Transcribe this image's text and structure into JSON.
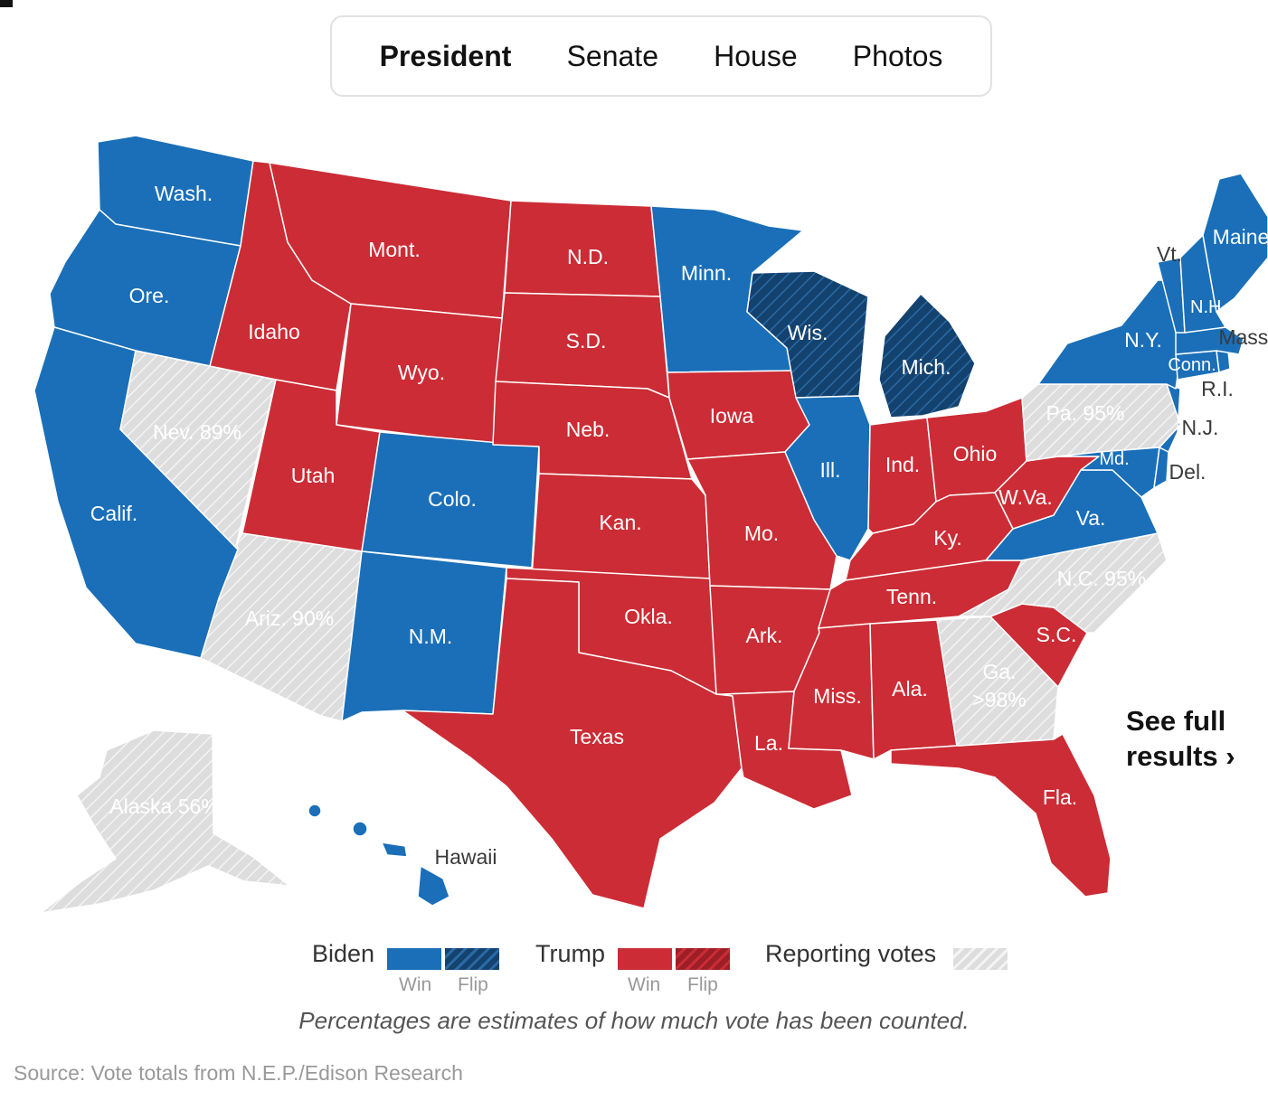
{
  "tabs": [
    {
      "label": "President",
      "active": true
    },
    {
      "label": "Senate",
      "active": false
    },
    {
      "label": "House",
      "active": false
    },
    {
      "label": "Photos",
      "active": false
    }
  ],
  "colors": {
    "biden": "#1a6fb8",
    "biden_flip": "#14426e",
    "trump": "#cc2c35",
    "trump_flip": "#9c1f27",
    "reporting": "#dddddd"
  },
  "map": {
    "states": {
      "wa": {
        "label": "Wash.",
        "status": "biden"
      },
      "or": {
        "label": "Ore.",
        "status": "biden"
      },
      "ca": {
        "label": "Calif.",
        "status": "biden"
      },
      "nv": {
        "label": "Nev. 89%",
        "status": "reporting",
        "reported_pct": 89
      },
      "id": {
        "label": "Idaho",
        "status": "trump"
      },
      "mt": {
        "label": "Mont.",
        "status": "trump"
      },
      "wy": {
        "label": "Wyo.",
        "status": "trump"
      },
      "ut": {
        "label": "Utah",
        "status": "trump"
      },
      "az": {
        "label": "Ariz. 90%",
        "status": "reporting",
        "reported_pct": 90
      },
      "co": {
        "label": "Colo.",
        "status": "biden"
      },
      "nm": {
        "label": "N.M.",
        "status": "biden"
      },
      "nd": {
        "label": "N.D.",
        "status": "trump"
      },
      "sd": {
        "label": "S.D.",
        "status": "trump"
      },
      "ne": {
        "label": "Neb.",
        "status": "trump"
      },
      "ks": {
        "label": "Kan.",
        "status": "trump"
      },
      "ok": {
        "label": "Okla.",
        "status": "trump"
      },
      "tx": {
        "label": "Texas",
        "status": "trump"
      },
      "mn": {
        "label": "Minn.",
        "status": "biden"
      },
      "ia": {
        "label": "Iowa",
        "status": "trump"
      },
      "mo": {
        "label": "Mo.",
        "status": "trump"
      },
      "ar": {
        "label": "Ark.",
        "status": "trump"
      },
      "la": {
        "label": "La.",
        "status": "trump"
      },
      "wi": {
        "label": "Wis.",
        "status": "biden_flip"
      },
      "il": {
        "label": "Ill.",
        "status": "biden"
      },
      "mi": {
        "label": "Mich.",
        "status": "biden_flip"
      },
      "in": {
        "label": "Ind.",
        "status": "trump"
      },
      "oh": {
        "label": "Ohio",
        "status": "trump"
      },
      "ky": {
        "label": "Ky.",
        "status": "trump"
      },
      "tn": {
        "label": "Tenn.",
        "status": "trump"
      },
      "ms": {
        "label": "Miss.",
        "status": "trump"
      },
      "al": {
        "label": "Ala.",
        "status": "trump"
      },
      "ga": {
        "label": "Ga.",
        "label2": ">98%",
        "status": "reporting",
        "reported_pct": 98
      },
      "fl": {
        "label": "Fla.",
        "status": "trump"
      },
      "sc": {
        "label": "S.C.",
        "status": "trump"
      },
      "nc": {
        "label": "N.C. 95%",
        "status": "reporting",
        "reported_pct": 95
      },
      "va": {
        "label": "Va.",
        "status": "biden"
      },
      "wv": {
        "label": "W.Va.",
        "status": "trump"
      },
      "pa": {
        "label": "Pa. 95%",
        "status": "reporting",
        "reported_pct": 95
      },
      "md": {
        "label": "Md.",
        "status": "biden"
      },
      "de": {
        "label": "Del.",
        "status": "biden"
      },
      "nj": {
        "label": "N.J.",
        "status": "biden"
      },
      "ny": {
        "label": "N.Y.",
        "status": "biden"
      },
      "ct": {
        "label": "Conn.",
        "status": "biden"
      },
      "ri": {
        "label": "R.I.",
        "status": "biden"
      },
      "ma": {
        "label": "Mass.",
        "status": "biden"
      },
      "vt": {
        "label": "Vt.",
        "status": "biden"
      },
      "nh": {
        "label": "N.H.",
        "status": "biden"
      },
      "me": {
        "label": "Maine",
        "status": "biden"
      },
      "ak": {
        "label": "Alaska 56%",
        "status": "reporting",
        "reported_pct": 56
      },
      "hi": {
        "label": "Hawaii",
        "status": "biden"
      }
    }
  },
  "see_full": {
    "line1": "See full",
    "line2": "results ›"
  },
  "legend": {
    "biden": "Biden",
    "trump": "Trump",
    "reporting": "Reporting votes",
    "win": "Win",
    "flip": "Flip"
  },
  "note": "Percentages are estimates of how much vote has been counted.",
  "source": "Source: Vote totals from N.E.P./Edison Research"
}
